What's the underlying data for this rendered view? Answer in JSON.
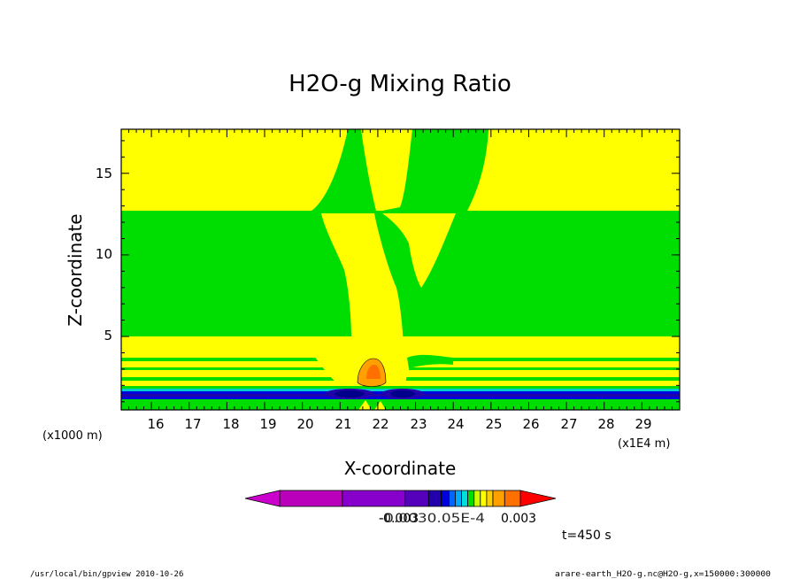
{
  "chart_data": {
    "type": "heatmap",
    "title": "H2O-g Mixing Ratio",
    "xlabel": "X-coordinate",
    "ylabel": "Z-coordinate",
    "x_unit_label": "(x1E4 m)",
    "y_unit_label": "(x1000 m)",
    "xlim": [
      15.2,
      30.0
    ],
    "ylim": [
      0.5,
      17.7
    ],
    "x_ticks": [
      "16",
      "17",
      "18",
      "19",
      "20",
      "21",
      "22",
      "23",
      "24",
      "25",
      "26",
      "27",
      "28",
      "29"
    ],
    "y_ticks": [
      "5",
      "10",
      "15"
    ],
    "grid": false,
    "colorbar": {
      "labels": [
        {
          "text": "-0.003",
          "value": -0.003
        },
        {
          "text": "0.003",
          "value": 0.003
        }
      ],
      "overlap_label": "-0.0030.05E-4",
      "colors": [
        "#cc00cc",
        "#bb00bb",
        "#8800cc",
        "#5500bb",
        "#2200aa",
        "#0000dd",
        "#0066ff",
        "#00aaff",
        "#00dddd",
        "#00dd00",
        "#ccff00",
        "#ffff00",
        "#ffd000",
        "#ffa000",
        "#ff7000",
        "#ff0000"
      ]
    },
    "fields": {
      "background": "#00dd00",
      "positive_small": "#ffff00",
      "positive_mid": "#ffa000",
      "positive_high": "#ff7000",
      "negative_small": "#0000dd",
      "negative_mid": "#2200aa",
      "negative_high": "#000088",
      "cyan": "#00cccc"
    }
  },
  "annotations": {
    "time": "t=450 s",
    "footer_left": "/usr/local/bin/gpview  2010-10-26",
    "footer_right": "arare-earth_H2O-g.nc@H2O-g,x=150000:300000"
  }
}
